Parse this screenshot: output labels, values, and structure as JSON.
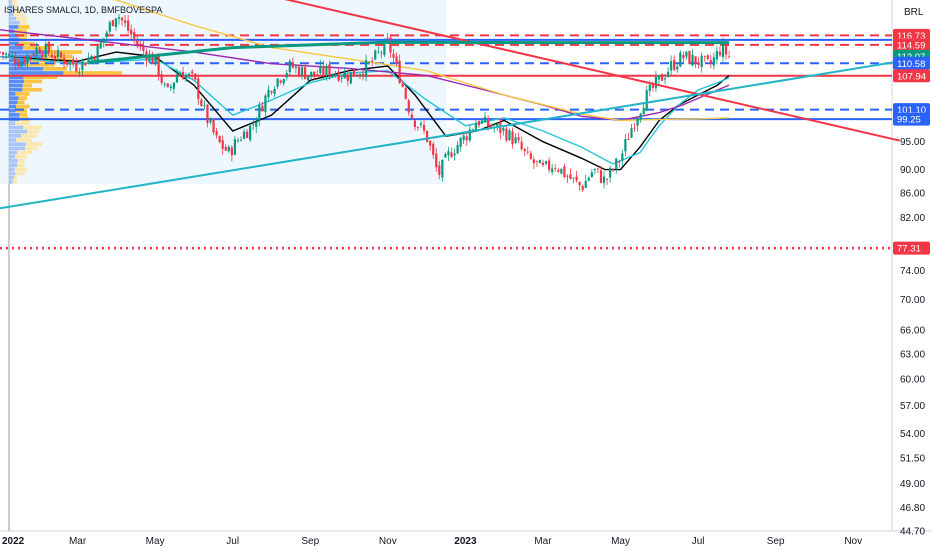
{
  "header": {
    "title": "ISHARES SMALCI, 1D, BMFBOVESPA",
    "currency": "BRL"
  },
  "chart_data": {
    "type": "candlestick",
    "title": "ISHARES SMALCI, 1D, BMFBOVESPA",
    "y_scale": "log",
    "ylim": [
      44.7,
      125
    ],
    "y_ticks": [
      95.0,
      90.0,
      86.0,
      82.0,
      74.0,
      70.0,
      66.0,
      63.0,
      60.0,
      57.0,
      54.0,
      51.5,
      49.0,
      46.8,
      44.7
    ],
    "x_ticks": [
      "2022",
      "Mar",
      "May",
      "Jul",
      "Sep",
      "Nov",
      "2023",
      "Mar",
      "May",
      "Jul",
      "Sep",
      "Nov"
    ],
    "x_tick_months": [
      0,
      2,
      4,
      6,
      8,
      10,
      12,
      14,
      16,
      18,
      20,
      22
    ],
    "x_range_months": [
      0,
      23
    ],
    "last_candle_month": 18.8,
    "horizontal_levels": [
      {
        "label": "116.73",
        "value": 116.73,
        "color": "#f23645",
        "style": "dashed"
      },
      {
        "value": 115.7,
        "color": "#2962ff",
        "style": "solid"
      },
      {
        "label": "114.59",
        "value": 114.59,
        "color": "#f23645",
        "style": "dashed"
      },
      {
        "label": "110.58",
        "value": 110.58,
        "color": "#2962ff",
        "style": "dashed"
      },
      {
        "label": "107.94",
        "value": 107.94,
        "color": "#f23645",
        "style": "solid"
      },
      {
        "label": "101.10",
        "value": 101.1,
        "color": "#2962ff",
        "style": "dashed"
      },
      {
        "label": "99.25",
        "value": 99.25,
        "color": "#2962ff",
        "style": "solid"
      },
      {
        "label": "77.31",
        "value": 77.31,
        "color": "#f23645",
        "style": "dotted"
      }
    ],
    "price_tags": [
      {
        "label": "116.73",
        "value": 116.73,
        "color": "#f23645"
      },
      {
        "label": "114.59",
        "value": 114.59,
        "color": "#f23645"
      },
      {
        "label": "112.07",
        "value": 112.07,
        "color": "#089981"
      },
      {
        "label": "110.58",
        "value": 110.58,
        "color": "#2962ff"
      },
      {
        "label": "107.94",
        "value": 107.94,
        "color": "#f23645"
      },
      {
        "label": "101.10",
        "value": 101.1,
        "color": "#2962ff"
      },
      {
        "label": "99.25",
        "value": 99.25,
        "color": "#2962ff"
      },
      {
        "label": "77.31",
        "value": 77.31,
        "color": "#f23645"
      }
    ],
    "trendlines": [
      {
        "name": "downtrend",
        "color": "#f23645",
        "points": [
          [
            3.0,
            135
          ],
          [
            23.2,
            95.2
          ]
        ]
      },
      {
        "name": "uptrend",
        "color": "#22b5c8",
        "points": [
          [
            0,
            83.5
          ],
          [
            23.2,
            111
          ]
        ]
      },
      {
        "name": "channel",
        "color": "#089981",
        "points": [
          [
            2.3,
            110.8
          ],
          [
            6.0,
            114.0
          ],
          [
            10.0,
            115.2
          ],
          [
            14.0,
            115.1
          ],
          [
            18.8,
            115.1
          ]
        ]
      }
    ],
    "price_series": {
      "months": [
        0,
        0.5,
        1.0,
        1.5,
        2.0,
        2.5,
        3.0,
        3.3,
        3.6,
        4.0,
        4.3,
        4.6,
        5.0,
        5.3,
        5.6,
        5.9,
        6.2,
        6.5,
        7.0,
        7.5,
        8.0,
        8.5,
        9.0,
        9.5,
        10.0,
        10.3,
        10.6,
        11.0,
        11.3,
        11.6,
        12.0,
        12.3,
        12.6,
        13.0,
        13.3,
        13.6,
        14.0,
        14.3,
        14.6,
        15.0,
        15.3,
        15.6,
        16.0,
        16.3,
        16.6,
        17.0,
        17.3,
        17.6,
        18.0,
        18.3,
        18.6,
        18.8
      ],
      "close": [
        113,
        111,
        114,
        112,
        110,
        113,
        122,
        118,
        114,
        111,
        104,
        109,
        107,
        100,
        95,
        93,
        96,
        98,
        106,
        110,
        108,
        109,
        108,
        110,
        115,
        108,
        100,
        96,
        89,
        93,
        96,
        99,
        98,
        97,
        95,
        92,
        90,
        91,
        89,
        87,
        90,
        88,
        92,
        98,
        103,
        107,
        110,
        112,
        111,
        110,
        114,
        112
      ]
    },
    "moving_averages": [
      {
        "color": "#000000",
        "points": [
          [
            0,
            112
          ],
          [
            2.0,
            111
          ],
          [
            3.0,
            113
          ],
          [
            4.0,
            112
          ],
          [
            5.0,
            106
          ],
          [
            6.0,
            97
          ],
          [
            7.0,
            100
          ],
          [
            8.0,
            107
          ],
          [
            9.0,
            109
          ],
          [
            10.0,
            110
          ],
          [
            10.7,
            104
          ],
          [
            11.5,
            96
          ],
          [
            12.3,
            97
          ],
          [
            13.0,
            99
          ],
          [
            14.0,
            95
          ],
          [
            15.0,
            92
          ],
          [
            15.6,
            90
          ],
          [
            16.0,
            90
          ],
          [
            16.5,
            94
          ],
          [
            17.0,
            99
          ],
          [
            17.5,
            102
          ],
          [
            18.0,
            104
          ],
          [
            18.5,
            106
          ],
          [
            18.8,
            108
          ]
        ]
      },
      {
        "color": "#26c6da",
        "points": [
          [
            0,
            112
          ],
          [
            2.0,
            110.5
          ],
          [
            4.0,
            111.5
          ],
          [
            5.0,
            107
          ],
          [
            6.0,
            100
          ],
          [
            7.0,
            103
          ],
          [
            8.0,
            106.5
          ],
          [
            9.0,
            108.5
          ],
          [
            10.0,
            109
          ],
          [
            11.0,
            103
          ],
          [
            12.0,
            98
          ],
          [
            13.0,
            99.5
          ],
          [
            14.0,
            97
          ],
          [
            15.0,
            94
          ],
          [
            15.8,
            91
          ],
          [
            16.5,
            93
          ],
          [
            17.0,
            98
          ],
          [
            17.5,
            102
          ],
          [
            18.0,
            105
          ],
          [
            18.5,
            106.5
          ],
          [
            18.8,
            107.5
          ]
        ]
      },
      {
        "color": "#9c27b0",
        "points": [
          [
            0,
            118
          ],
          [
            3.0,
            115
          ],
          [
            5.0,
            113
          ],
          [
            7.0,
            110.5
          ],
          [
            9.0,
            109.5
          ],
          [
            11.0,
            108
          ],
          [
            12.5,
            105
          ],
          [
            14.0,
            102
          ],
          [
            15.0,
            99.8
          ],
          [
            16.0,
            99
          ],
          [
            17.0,
            100.5
          ],
          [
            17.6,
            102
          ],
          [
            18.2,
            104
          ],
          [
            18.8,
            106
          ]
        ]
      },
      {
        "color": "#f9c846",
        "points": [
          [
            0,
            130
          ],
          [
            3.0,
            125
          ],
          [
            5.0,
            119
          ],
          [
            7.0,
            114
          ],
          [
            9.0,
            111.5
          ],
          [
            11.0,
            109
          ],
          [
            13.0,
            104
          ],
          [
            15.0,
            100.2
          ],
          [
            16.0,
            99.0
          ],
          [
            17.0,
            99.2
          ],
          [
            18.0,
            99.3
          ],
          [
            18.8,
            99.5
          ]
        ]
      }
    ],
    "volume_profile": {
      "start_month": 0,
      "end_month": 11.5,
      "price_range": [
        87.5,
        125
      ]
    }
  }
}
